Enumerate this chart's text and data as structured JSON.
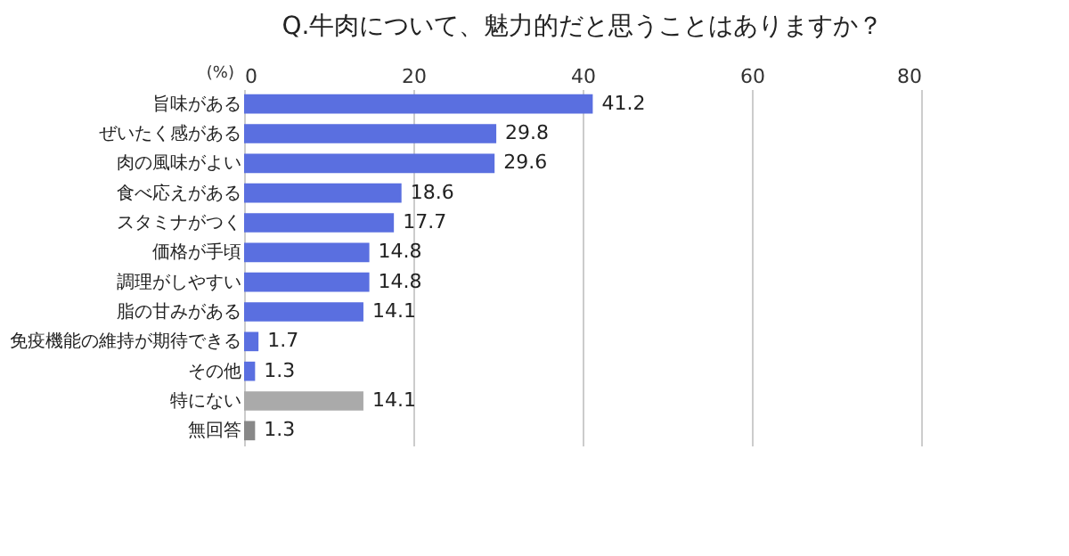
{
  "chart_data": {
    "type": "bar",
    "orientation": "horizontal",
    "title": "Q.牛肉について、魅力的だと思うことはありますか？",
    "xlabel": "(%)",
    "categories": [
      "旨味がある",
      "ぜいたく感がある",
      "肉の風味がよい",
      "食べ応えがある",
      "スタミナがつく",
      "価格が手頃",
      "調理がしやすい",
      "脂の甘みがある",
      "免疫機能の維持が期待できる",
      "その他",
      "特にない",
      "無回答"
    ],
    "values": [
      41.2,
      29.8,
      29.6,
      18.6,
      17.7,
      14.8,
      14.8,
      14.1,
      1.7,
      1.3,
      14.1,
      1.3
    ],
    "colors": [
      "#5a6fe0",
      "#5a6fe0",
      "#5a6fe0",
      "#5a6fe0",
      "#5a6fe0",
      "#5a6fe0",
      "#5a6fe0",
      "#5a6fe0",
      "#5a6fe0",
      "#5a6fe0",
      "#aaaaaa",
      "#888888"
    ],
    "xlim": [
      0,
      80
    ],
    "xticks": [
      0,
      20,
      40,
      60,
      80
    ],
    "grid": "x",
    "data_labels": true
  }
}
